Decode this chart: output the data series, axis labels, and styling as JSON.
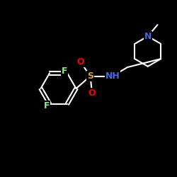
{
  "background_color": "#000000",
  "atom_colors": {
    "C": "#ffffff",
    "N": "#4169e1",
    "O": "#ff0000",
    "S": "#daa520",
    "F": "#90ee90",
    "H": "#ffffff"
  },
  "bond_color": "#ffffff",
  "bond_width": 1.5,
  "font_size_atom": 9,
  "figsize": [
    2.5,
    2.5
  ],
  "dpi": 100,
  "xlim": [
    0,
    10
  ],
  "ylim": [
    0,
    10
  ]
}
